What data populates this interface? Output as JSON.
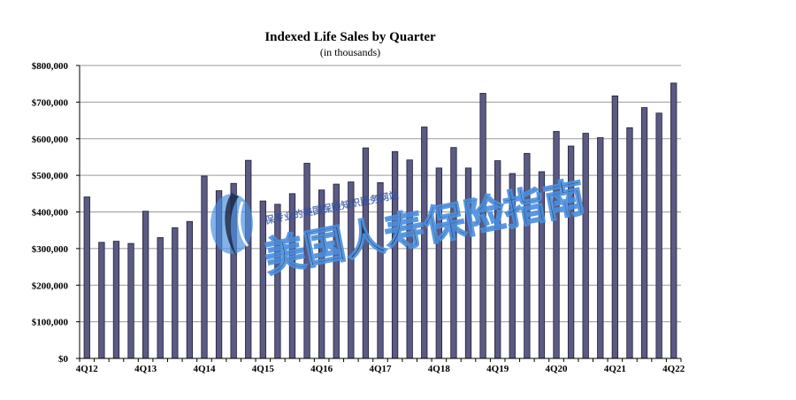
{
  "chart_data": {
    "type": "bar",
    "title": "Indexed Life Sales by Quarter",
    "subtitle": "(in thousands)",
    "xlabel": "",
    "ylabel": "",
    "ylim": [
      0,
      800000
    ],
    "yticks": [
      0,
      100000,
      200000,
      300000,
      400000,
      500000,
      600000,
      700000,
      800000
    ],
    "ytick_labels": [
      "$0",
      "$100,000",
      "$200,000",
      "$300,000",
      "$400,000",
      "$500,000",
      "$600,000",
      "$700,000",
      "$800,000"
    ],
    "grid": true,
    "bar_color": "#5a5a82",
    "categories": [
      "4Q12",
      "1Q13",
      "2Q13",
      "3Q13",
      "4Q13",
      "1Q14",
      "2Q14",
      "3Q14",
      "4Q14",
      "1Q15",
      "2Q15",
      "3Q15",
      "4Q15",
      "1Q16",
      "2Q16",
      "3Q16",
      "4Q16",
      "1Q17",
      "2Q17",
      "3Q17",
      "4Q17",
      "1Q18",
      "2Q18",
      "3Q18",
      "4Q18",
      "1Q19",
      "2Q19",
      "3Q19",
      "4Q19",
      "1Q20",
      "2Q20",
      "3Q20",
      "4Q20",
      "1Q21",
      "2Q21",
      "3Q21",
      "4Q21",
      "1Q22",
      "2Q22",
      "3Q22",
      "4Q22"
    ],
    "shown_tick_labels": [
      "4Q12",
      "4Q13",
      "4Q14",
      "4Q15",
      "4Q16",
      "4Q17",
      "4Q18",
      "4Q19",
      "4Q20",
      "4Q21",
      "4Q22"
    ],
    "values": [
      441000,
      317000,
      320000,
      314000,
      402000,
      330000,
      357000,
      374000,
      498000,
      458000,
      478000,
      541000,
      430000,
      421000,
      450000,
      533000,
      460000,
      476000,
      482000,
      575000,
      480000,
      565000,
      542000,
      632000,
      520000,
      576000,
      520000,
      724000,
      540000,
      505000,
      560000,
      510000,
      620000,
      580000,
      615000,
      603000,
      717000,
      630000,
      685000,
      670000,
      752000
    ]
  },
  "watermark": {
    "small_text": "保专业的美国保险知识服务网站",
    "large_text": "美国人寿保险指南",
    "colors": {
      "blue": "#4a8fe0",
      "dark": "#1f2f4f"
    }
  }
}
